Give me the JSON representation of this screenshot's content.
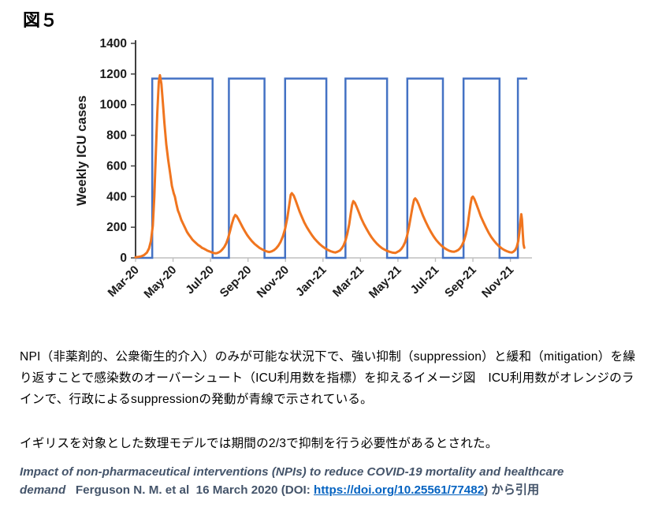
{
  "figure_label": "図５",
  "description": {
    "paragraph1": "NPI（非薬剤的、公衆衛生的介入）のみが可能な状況下で、強い抑制（suppression）と緩和（mitigation）を繰り返すことで感染数のオーバーシュート（ICU利用数を指標）を抑えるイメージ図　ICU利用数がオレンジのラインで、行政によるsuppressionの発動が青線で示されている。",
    "paragraph2": "イギリスを対象とした数理モデルでは期間の2/3で抑制を行う必要性があるとされた。"
  },
  "citation": {
    "title_part1": "Impact of non-pharmaceutical interventions (NPIs) to reduce COVID-19 mortality and healthcare",
    "title_part2": "demand",
    "authors_date": "   Ferguson N. M. et al  16 March 2020 (DOI: ",
    "doi_link": "https://doi.org/10.25561/77482",
    "suffix": ") から引用"
  },
  "chart_data": {
    "type": "line",
    "title": "",
    "xlabel": "",
    "ylabel": "Weekly ICU cases",
    "ylim": [
      0,
      1400
    ],
    "y_ticks": [
      0,
      200,
      400,
      600,
      800,
      1000,
      1200,
      1400
    ],
    "x_unit": "months since Mar-2020",
    "x_range_months": [
      0,
      20.9
    ],
    "x_ticks": [
      {
        "pos": 0,
        "label": "Mar-20"
      },
      {
        "pos": 2,
        "label": "May-20"
      },
      {
        "pos": 4,
        "label": "Jul-20"
      },
      {
        "pos": 6,
        "label": "Sep-20"
      },
      {
        "pos": 8,
        "label": "Nov-20"
      },
      {
        "pos": 10,
        "label": "Jan-21"
      },
      {
        "pos": 12,
        "label": "Mar-21"
      },
      {
        "pos": 14,
        "label": "May-21"
      },
      {
        "pos": 16,
        "label": "Jul-21"
      },
      {
        "pos": 18,
        "label": "Sep-21"
      },
      {
        "pos": 20,
        "label": "Nov-21"
      }
    ],
    "grid": "off",
    "legend": "none",
    "axis_colors": {
      "y_axis": "#3F3F3F",
      "x_axis": "#BFBFBF"
    },
    "series": [
      {
        "name": "suppression-trigger",
        "style": "step",
        "color": "#4472C4",
        "stroke_width": 2.5,
        "on_level": 1170,
        "off_level": 0,
        "on_intervals": [
          [
            0.89,
            4.11
          ],
          [
            4.98,
            6.88
          ],
          [
            7.98,
            10.18
          ],
          [
            11.2,
            13.42
          ],
          [
            14.5,
            16.4
          ],
          [
            17.5,
            19.42
          ],
          [
            20.4,
            20.9
          ]
        ]
      },
      {
        "name": "weekly-icu-cases",
        "style": "line",
        "color": "#F0751F",
        "stroke_width": 3,
        "points": [
          [
            0.0,
            4
          ],
          [
            0.15,
            6
          ],
          [
            0.3,
            10
          ],
          [
            0.45,
            18
          ],
          [
            0.6,
            34
          ],
          [
            0.72,
            62
          ],
          [
            0.82,
            110
          ],
          [
            0.92,
            210
          ],
          [
            1.0,
            400
          ],
          [
            1.08,
            680
          ],
          [
            1.16,
            950
          ],
          [
            1.24,
            1150
          ],
          [
            1.3,
            1192
          ],
          [
            1.38,
            1135
          ],
          [
            1.46,
            1010
          ],
          [
            1.54,
            880
          ],
          [
            1.64,
            740
          ],
          [
            1.74,
            640
          ],
          [
            1.84,
            555
          ],
          [
            1.94,
            470
          ],
          [
            2.04,
            420
          ],
          [
            2.1,
            400
          ],
          [
            2.18,
            352
          ],
          [
            2.26,
            310
          ],
          [
            2.34,
            285
          ],
          [
            2.44,
            248
          ],
          [
            2.54,
            222
          ],
          [
            2.64,
            196
          ],
          [
            2.74,
            170
          ],
          [
            2.84,
            152
          ],
          [
            2.94,
            135
          ],
          [
            3.04,
            118
          ],
          [
            3.14,
            106
          ],
          [
            3.24,
            95
          ],
          [
            3.34,
            84
          ],
          [
            3.44,
            76
          ],
          [
            3.54,
            66
          ],
          [
            3.64,
            60
          ],
          [
            3.74,
            54
          ],
          [
            3.84,
            47
          ],
          [
            3.94,
            42
          ],
          [
            4.04,
            37
          ],
          [
            4.14,
            33
          ],
          [
            4.24,
            30
          ],
          [
            4.34,
            31
          ],
          [
            4.44,
            36
          ],
          [
            4.54,
            44
          ],
          [
            4.64,
            56
          ],
          [
            4.74,
            72
          ],
          [
            4.84,
            95
          ],
          [
            4.94,
            130
          ],
          [
            5.04,
            175
          ],
          [
            5.14,
            222
          ],
          [
            5.24,
            262
          ],
          [
            5.32,
            280
          ],
          [
            5.4,
            272
          ],
          [
            5.5,
            250
          ],
          [
            5.6,
            226
          ],
          [
            5.72,
            198
          ],
          [
            5.84,
            172
          ],
          [
            5.96,
            148
          ],
          [
            6.08,
            128
          ],
          [
            6.2,
            110
          ],
          [
            6.34,
            92
          ],
          [
            6.48,
            78
          ],
          [
            6.62,
            65
          ],
          [
            6.76,
            55
          ],
          [
            6.9,
            47
          ],
          [
            7.02,
            41
          ],
          [
            7.14,
            38
          ],
          [
            7.26,
            42
          ],
          [
            7.38,
            50
          ],
          [
            7.5,
            62
          ],
          [
            7.62,
            80
          ],
          [
            7.74,
            105
          ],
          [
            7.86,
            140
          ],
          [
            7.98,
            190
          ],
          [
            8.1,
            262
          ],
          [
            8.2,
            345
          ],
          [
            8.28,
            412
          ],
          [
            8.34,
            422
          ],
          [
            8.44,
            406
          ],
          [
            8.54,
            375
          ],
          [
            8.64,
            340
          ],
          [
            8.76,
            300
          ],
          [
            8.88,
            265
          ],
          [
            9.0,
            232
          ],
          [
            9.14,
            200
          ],
          [
            9.28,
            172
          ],
          [
            9.42,
            146
          ],
          [
            9.56,
            124
          ],
          [
            9.7,
            105
          ],
          [
            9.84,
            88
          ],
          [
            9.98,
            74
          ],
          [
            10.12,
            62
          ],
          [
            10.26,
            52
          ],
          [
            10.4,
            44
          ],
          [
            10.54,
            38
          ],
          [
            10.66,
            35
          ],
          [
            10.78,
            40
          ],
          [
            10.9,
            48
          ],
          [
            11.0,
            62
          ],
          [
            11.1,
            82
          ],
          [
            11.2,
            112
          ],
          [
            11.3,
            158
          ],
          [
            11.4,
            220
          ],
          [
            11.48,
            288
          ],
          [
            11.55,
            345
          ],
          [
            11.62,
            370
          ],
          [
            11.7,
            360
          ],
          [
            11.8,
            332
          ],
          [
            11.92,
            295
          ],
          [
            12.04,
            258
          ],
          [
            12.18,
            222
          ],
          [
            12.32,
            190
          ],
          [
            12.46,
            160
          ],
          [
            12.6,
            134
          ],
          [
            12.74,
            111
          ],
          [
            12.88,
            92
          ],
          [
            13.02,
            76
          ],
          [
            13.16,
            63
          ],
          [
            13.3,
            53
          ],
          [
            13.44,
            45
          ],
          [
            13.58,
            39
          ],
          [
            13.72,
            34
          ],
          [
            13.86,
            32
          ],
          [
            13.96,
            38
          ],
          [
            14.08,
            46
          ],
          [
            14.18,
            58
          ],
          [
            14.28,
            76
          ],
          [
            14.38,
            102
          ],
          [
            14.48,
            140
          ],
          [
            14.58,
            196
          ],
          [
            14.68,
            265
          ],
          [
            14.78,
            335
          ],
          [
            14.86,
            380
          ],
          [
            14.92,
            388
          ],
          [
            15.0,
            376
          ],
          [
            15.1,
            350
          ],
          [
            15.22,
            312
          ],
          [
            15.34,
            274
          ],
          [
            15.48,
            236
          ],
          [
            15.62,
            201
          ],
          [
            15.76,
            169
          ],
          [
            15.9,
            141
          ],
          [
            16.04,
            117
          ],
          [
            16.18,
            97
          ],
          [
            16.32,
            80
          ],
          [
            16.46,
            66
          ],
          [
            16.6,
            55
          ],
          [
            16.74,
            46
          ],
          [
            16.88,
            41
          ],
          [
            17.0,
            40
          ],
          [
            17.1,
            44
          ],
          [
            17.22,
            52
          ],
          [
            17.32,
            64
          ],
          [
            17.42,
            82
          ],
          [
            17.52,
            110
          ],
          [
            17.62,
            152
          ],
          [
            17.72,
            212
          ],
          [
            17.8,
            285
          ],
          [
            17.88,
            355
          ],
          [
            17.94,
            392
          ],
          [
            18.0,
            400
          ],
          [
            18.08,
            384
          ],
          [
            18.18,
            352
          ],
          [
            18.3,
            312
          ],
          [
            18.42,
            272
          ],
          [
            18.56,
            233
          ],
          [
            18.7,
            197
          ],
          [
            18.84,
            164
          ],
          [
            18.98,
            136
          ],
          [
            19.12,
            112
          ],
          [
            19.26,
            92
          ],
          [
            19.4,
            75
          ],
          [
            19.54,
            61
          ],
          [
            19.68,
            51
          ],
          [
            19.82,
            43
          ],
          [
            19.96,
            37
          ],
          [
            20.08,
            35
          ],
          [
            20.16,
            40
          ],
          [
            20.26,
            52
          ],
          [
            20.34,
            72
          ],
          [
            20.42,
            110
          ],
          [
            20.48,
            165
          ],
          [
            20.54,
            240
          ],
          [
            20.58,
            285
          ],
          [
            20.62,
            250
          ],
          [
            20.66,
            160
          ],
          [
            20.7,
            90
          ],
          [
            20.74,
            66
          ]
        ]
      }
    ]
  }
}
